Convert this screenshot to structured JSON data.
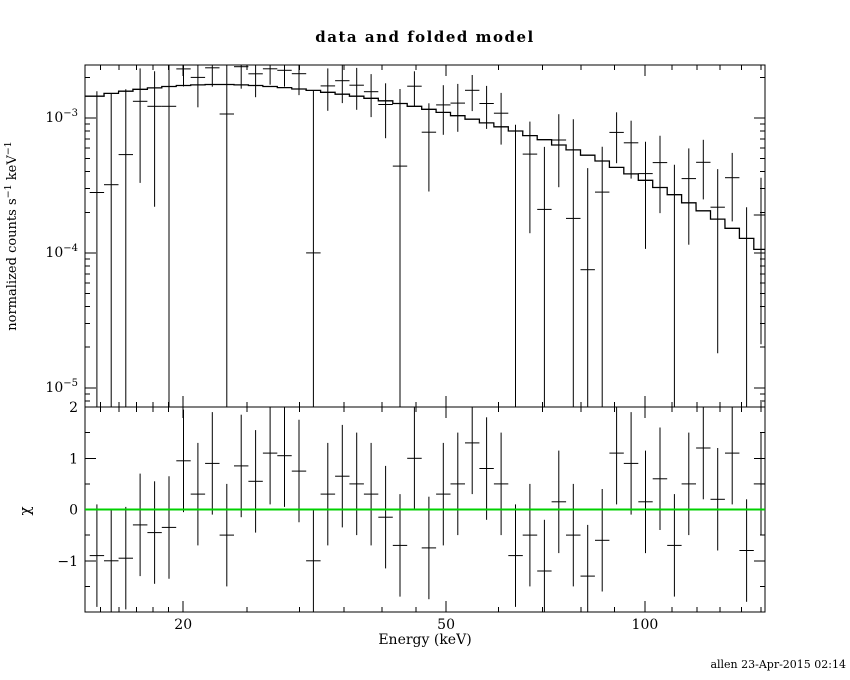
{
  "page": {
    "timestamp": "allen 23-Apr-2015 02:14"
  },
  "chart_data": {
    "type": "scatter",
    "subtype": "xspec-spectrum-with-residuals",
    "title": "data and folded model",
    "xlabel": "Energy (keV)",
    "ylabel_parts": [
      "normalized counts s",
      "-1",
      " keV",
      "-1"
    ],
    "ylabel_plain": "normalized counts s^-1 keV^-1",
    "residual_ylabel": "χ",
    "xscale": "log",
    "yscale_top": "log",
    "grid": false,
    "legend": "none",
    "xlim": [
      14.2,
      152
    ],
    "ylim_top": [
      7.2e-06,
      0.00247
    ],
    "ylim_residual": [
      -2,
      2
    ],
    "xticks_major": [
      20,
      50,
      100
    ],
    "xticks_minor": [
      15,
      16,
      17,
      18,
      19,
      25,
      30,
      35,
      40,
      45,
      60,
      70,
      80,
      90,
      110,
      120,
      130,
      140,
      150
    ],
    "yticks_top_exponents": [
      -3,
      -4,
      -5
    ],
    "yticks_residual": [
      -1,
      0,
      1,
      2
    ],
    "yticks_residual_minor": [
      -1.5,
      -0.5,
      0.5,
      1.5
    ],
    "zero_line_color": "#00d000",
    "data_color": "#000000",
    "bin_ratio": 1.0516,
    "energy_kev": [
      14.8,
      15.56,
      16.37,
      17.21,
      18.1,
      19.03,
      20.02,
      21.05,
      22.13,
      23.28,
      24.48,
      25.74,
      27.07,
      28.47,
      29.94,
      31.48,
      33.11,
      34.82,
      36.61,
      38.5,
      40.49,
      42.58,
      44.78,
      47.09,
      49.52,
      52.08,
      54.77,
      57.59,
      60.57,
      63.7,
      66.98,
      70.44,
      74.08,
      77.9,
      81.93,
      86.16,
      90.61,
      95.29,
      100.21,
      105.39,
      110.83,
      116.55,
      122.57,
      128.9,
      135.56,
      142.56,
      149.92
    ],
    "model_counts": [
      0.00145,
      0.00152,
      0.00158,
      0.00163,
      0.00167,
      0.00171,
      0.00174,
      0.00176,
      0.00177,
      0.00177,
      0.00176,
      0.00174,
      0.00171,
      0.00168,
      0.00164,
      0.0016,
      0.00155,
      0.0015,
      0.00145,
      0.0014,
      0.00134,
      0.00128,
      0.00122,
      0.00116,
      0.0011,
      0.00104,
      0.00098,
      0.00092,
      0.00086,
      0.0008,
      0.00074,
      0.00069,
      0.00063,
      0.00058,
      0.00053,
      0.00048,
      0.00043,
      0.000385,
      0.000345,
      0.000305,
      0.00027,
      0.000235,
      0.000205,
      0.000178,
      0.000152,
      0.000128,
      0.000106
    ],
    "sigma_counts": [
      0.0013,
      0.0012,
      0.0011,
      0.001,
      0.001,
      0.0014,
      0.0006,
      0.0008,
      0.00065,
      0.0014,
      0.00075,
      0.0007,
      0.00055,
      0.00055,
      0.00065,
      0.0015,
      0.0006,
      0.0006,
      0.0006,
      0.00055,
      0.00055,
      0.0012,
      0.0005,
      0.0005,
      0.0005,
      0.0005,
      0.00048,
      0.00045,
      0.00045,
      0.0009,
      0.0004,
      0.0004,
      0.00038,
      0.0008,
      0.00035,
      0.00033,
      0.00032,
      0.0003,
      0.00028,
      0.00027,
      0.0006,
      0.00024,
      0.00022,
      0.0002,
      0.00019,
      0.00045,
      0.00017
    ],
    "chi": [
      -0.9,
      -1.0,
      -0.95,
      -0.3,
      -0.45,
      -0.35,
      0.95,
      0.3,
      0.9,
      -0.5,
      0.85,
      0.55,
      1.1,
      1.05,
      0.75,
      -1.0,
      0.3,
      0.65,
      0.5,
      0.3,
      -0.15,
      -0.7,
      1.0,
      -0.75,
      0.3,
      0.5,
      1.3,
      0.8,
      0.5,
      -0.9,
      -0.5,
      -1.2,
      0.15,
      -0.5,
      -1.3,
      -0.6,
      1.1,
      0.9,
      0.15,
      0.6,
      -0.7,
      0.5,
      1.2,
      0.2,
      1.1,
      -0.8,
      0.5
    ],
    "residual_error": 1.0
  }
}
